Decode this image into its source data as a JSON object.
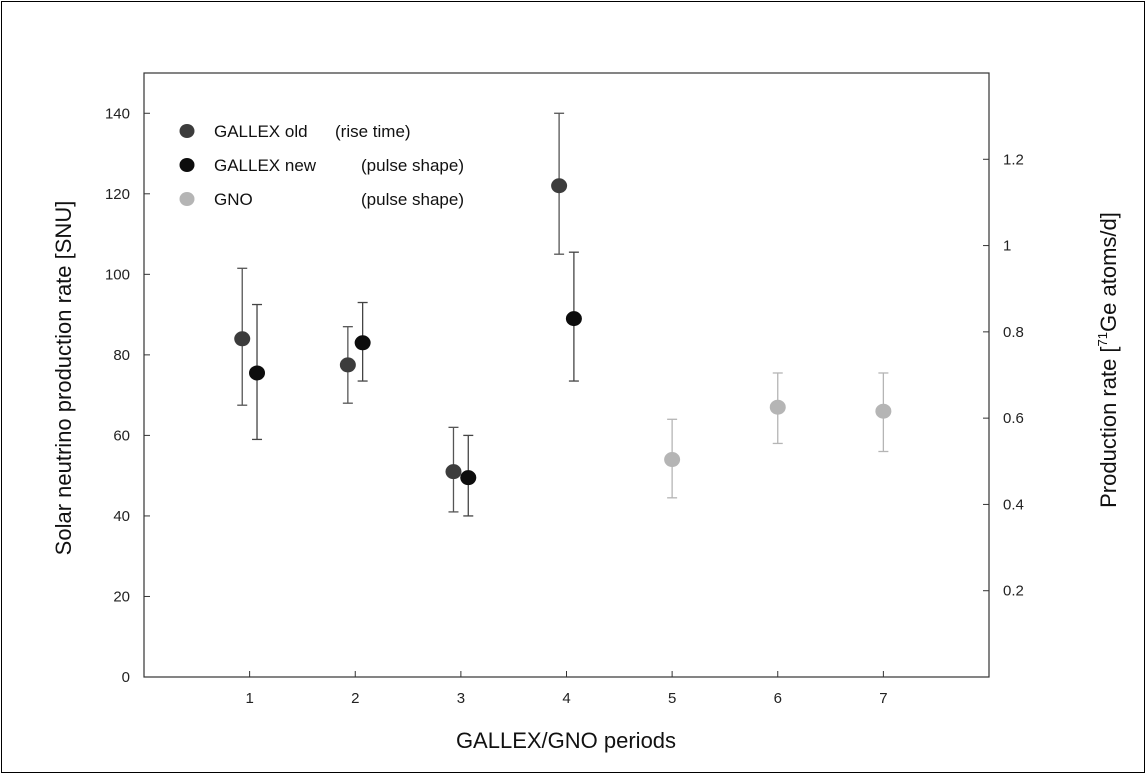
{
  "chart_data": {
    "type": "scatter",
    "xlabel": "GALLEX/GNO periods",
    "ylabel": "Solar neutrino production rate [SNU]",
    "ylabel_right_pre": "Production rate [",
    "ylabel_right_sup": "71",
    "ylabel_right_post": "Ge atoms/d]",
    "xlim": [
      0,
      8
    ],
    "ylim": [
      0,
      150
    ],
    "y2lim": [
      0,
      1.4
    ],
    "xticks": [
      1,
      2,
      3,
      4,
      5,
      6,
      7
    ],
    "yticks": [
      0,
      20,
      40,
      60,
      80,
      100,
      120,
      140
    ],
    "y2ticks": [
      0.2,
      0.4,
      0.6,
      0.8,
      1,
      1.2
    ],
    "y2tick_labels": [
      "0.2",
      "0.4",
      "0.6",
      "0.8",
      "1",
      "1.2"
    ],
    "legend_position": "top-left",
    "series": [
      {
        "name": "GALLEX old",
        "method": "(rise time)",
        "color": "#3c3c3c",
        "errcolor": "#555555",
        "points": [
          {
            "x": 0.93,
            "y": 84,
            "lo": 67.5,
            "hi": 101.5
          },
          {
            "x": 1.93,
            "y": 77.5,
            "lo": 68,
            "hi": 87
          },
          {
            "x": 2.93,
            "y": 51,
            "lo": 41,
            "hi": 62
          },
          {
            "x": 3.93,
            "y": 122,
            "lo": 105,
            "hi": 140
          }
        ]
      },
      {
        "name": "GALLEX new",
        "method": "(pulse shape)",
        "color": "#0d0d0d",
        "errcolor": "#444444",
        "points": [
          {
            "x": 1.07,
            "y": 75.5,
            "lo": 59,
            "hi": 92.5
          },
          {
            "x": 2.07,
            "y": 83,
            "lo": 73.5,
            "hi": 93
          },
          {
            "x": 3.07,
            "y": 49.5,
            "lo": 40,
            "hi": 60
          },
          {
            "x": 4.07,
            "y": 89,
            "lo": 73.5,
            "hi": 105.5
          }
        ]
      },
      {
        "name": "GNO",
        "method": "(pulse shape)",
        "color": "#b5b5b5",
        "errcolor": "#b5b5b5",
        "points": [
          {
            "x": 5,
            "y": 54,
            "lo": 44.5,
            "hi": 64
          },
          {
            "x": 6,
            "y": 67,
            "lo": 58,
            "hi": 75.5
          },
          {
            "x": 7,
            "y": 66,
            "lo": 56,
            "hi": 75.5
          }
        ]
      }
    ]
  }
}
